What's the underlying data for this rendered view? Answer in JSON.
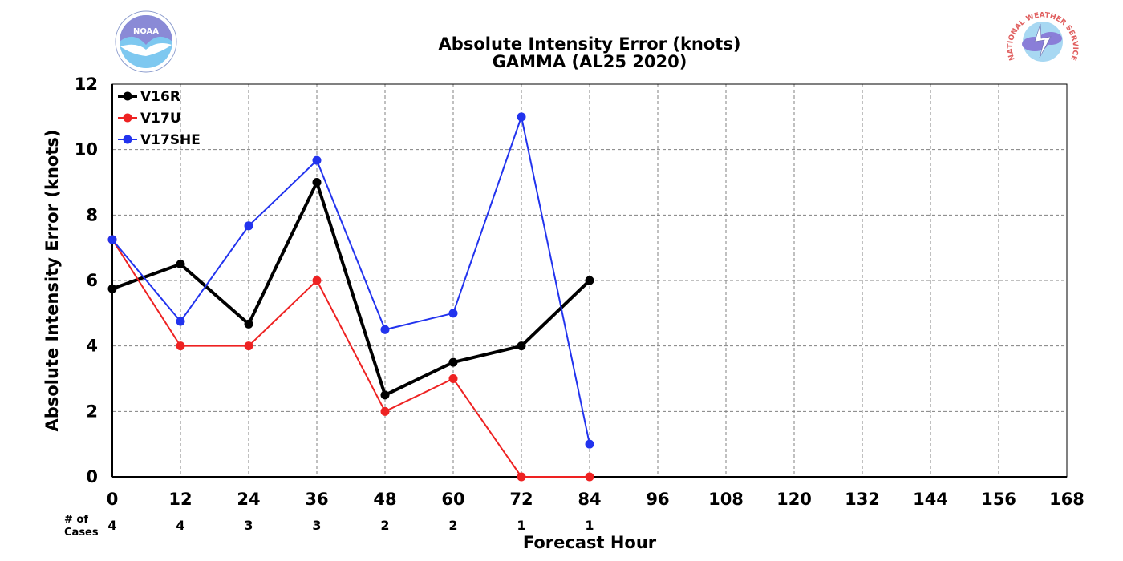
{
  "logos": {
    "left": {
      "icon": "noaa-logo",
      "text": "NOAA"
    },
    "right": {
      "icon": "nws-logo",
      "text": "NATIONAL WEATHER SERVICE"
    }
  },
  "chart_data": {
    "type": "line",
    "title": "Absolute Intensity Error (knots)",
    "subtitle": "GAMMA (AL25 2020)",
    "xlabel": "Forecast Hour",
    "ylabel": "Absolute Intensity Error (knots)",
    "xlim": [
      0,
      168
    ],
    "ylim": [
      0,
      12
    ],
    "xticks": [
      0,
      12,
      24,
      36,
      48,
      60,
      72,
      84,
      96,
      108,
      120,
      132,
      144,
      156,
      168
    ],
    "yticks": [
      0,
      2,
      4,
      6,
      8,
      10,
      12
    ],
    "grid": true,
    "legend_position": "top-left",
    "cases_label": "# of\nCases",
    "cases": [
      {
        "x": 0,
        "n": "4"
      },
      {
        "x": 12,
        "n": "4"
      },
      {
        "x": 24,
        "n": "3"
      },
      {
        "x": 36,
        "n": "3"
      },
      {
        "x": 48,
        "n": "2"
      },
      {
        "x": 60,
        "n": "2"
      },
      {
        "x": 72,
        "n": "1"
      },
      {
        "x": 84,
        "n": "1"
      }
    ],
    "series": [
      {
        "name": "V16R",
        "color": "#000000",
        "width": "thick",
        "x": [
          0,
          12,
          24,
          36,
          48,
          60,
          72,
          84
        ],
        "y": [
          5.75,
          6.5,
          4.67,
          9.0,
          2.5,
          3.5,
          4.0,
          6.0
        ]
      },
      {
        "name": "V17U",
        "color": "#ee2222",
        "width": "thin",
        "x": [
          0,
          12,
          24,
          36,
          48,
          60,
          72,
          84
        ],
        "y": [
          7.25,
          4.0,
          4.0,
          6.0,
          2.0,
          3.0,
          0.0,
          0.0
        ]
      },
      {
        "name": "V17SHE",
        "color": "#2233ee",
        "width": "thin",
        "x": [
          0,
          12,
          24,
          36,
          48,
          60,
          72,
          84
        ],
        "y": [
          7.25,
          4.75,
          7.67,
          9.67,
          4.5,
          5.0,
          11.0,
          1.0
        ]
      }
    ]
  }
}
